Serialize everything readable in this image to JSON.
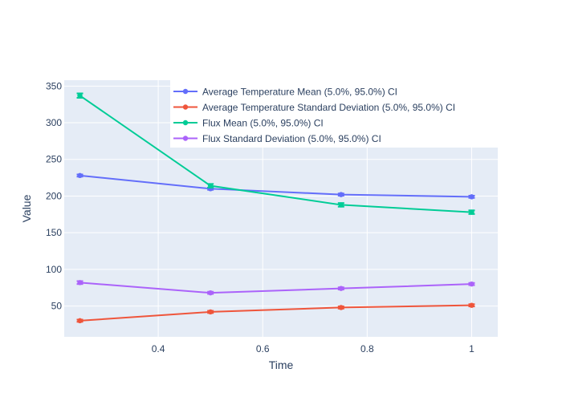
{
  "chart_data": {
    "type": "line",
    "xlabel": "Time",
    "ylabel": "Value",
    "x": [
      0.25,
      0.5,
      0.75,
      1
    ],
    "xlim": [
      0.22,
      1.05
    ],
    "ylim": [
      8,
      358
    ],
    "x_ticks": [
      0.4,
      0.6,
      0.8,
      1
    ],
    "x_tick_labels": [
      "0.4",
      "0.6",
      "0.8",
      "1"
    ],
    "y_ticks": [
      50,
      100,
      150,
      200,
      250,
      300,
      350
    ],
    "y_tick_labels": [
      "50",
      "100",
      "150",
      "200",
      "250",
      "300",
      "350"
    ],
    "grid": true,
    "legend_position": "top-right",
    "series": [
      {
        "name": "Average Temperature Mean (5.0%, 95.0%) CI",
        "color": "#636efa",
        "values": [
          228,
          210,
          202,
          199
        ],
        "err": [
          1.5,
          1.5,
          1.5,
          1.5
        ]
      },
      {
        "name": "Average Temperature Standard Deviation (5.0%, 95.0%) CI",
        "color": "#ef553b",
        "values": [
          30,
          42,
          48,
          51
        ],
        "err": [
          1.5,
          1.5,
          1.5,
          1.5
        ]
      },
      {
        "name": "Flux Mean (5.0%, 95.0%) CI",
        "color": "#00cc96",
        "values": [
          337,
          214,
          188,
          178
        ],
        "err": [
          3,
          2.5,
          2.5,
          2.5
        ]
      },
      {
        "name": "Flux Standard Deviation (5.0%, 95.0%) CI",
        "color": "#ab63fa",
        "values": [
          82,
          68,
          74,
          80
        ],
        "err": [
          2,
          1.5,
          1.5,
          1.5
        ]
      }
    ]
  }
}
